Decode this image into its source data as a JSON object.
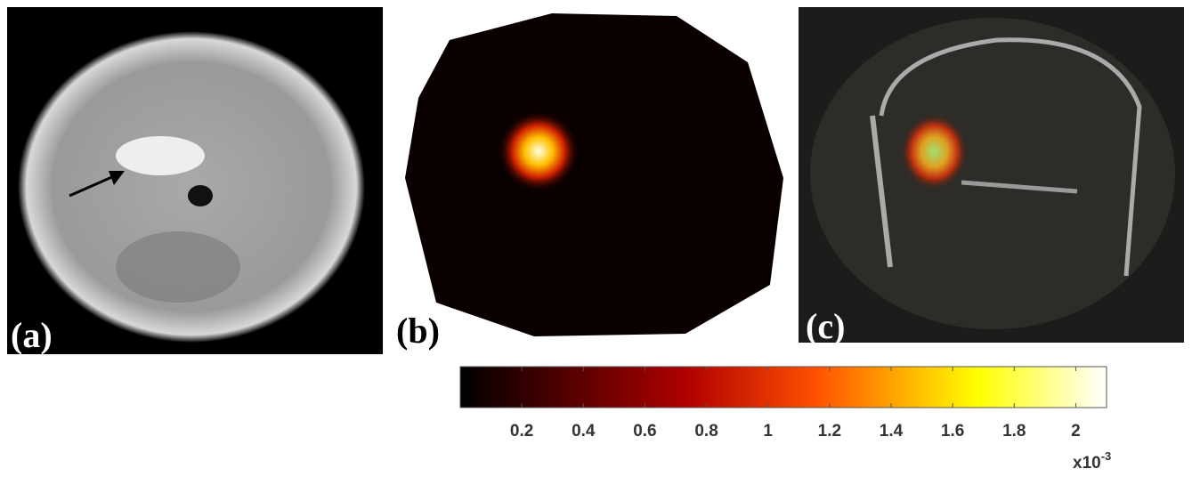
{
  "panels": {
    "a": {
      "label": "(a)"
    },
    "b": {
      "label": "(b)"
    },
    "c": {
      "label": "(c)"
    }
  },
  "colorbar": {
    "clim": [
      0,
      2.1
    ],
    "ticks": [
      0.2,
      0.4,
      0.6,
      0.8,
      1,
      1.2,
      1.4,
      1.6,
      1.8,
      2
    ],
    "multiplier": "x10",
    "exponent": "-3"
  }
}
